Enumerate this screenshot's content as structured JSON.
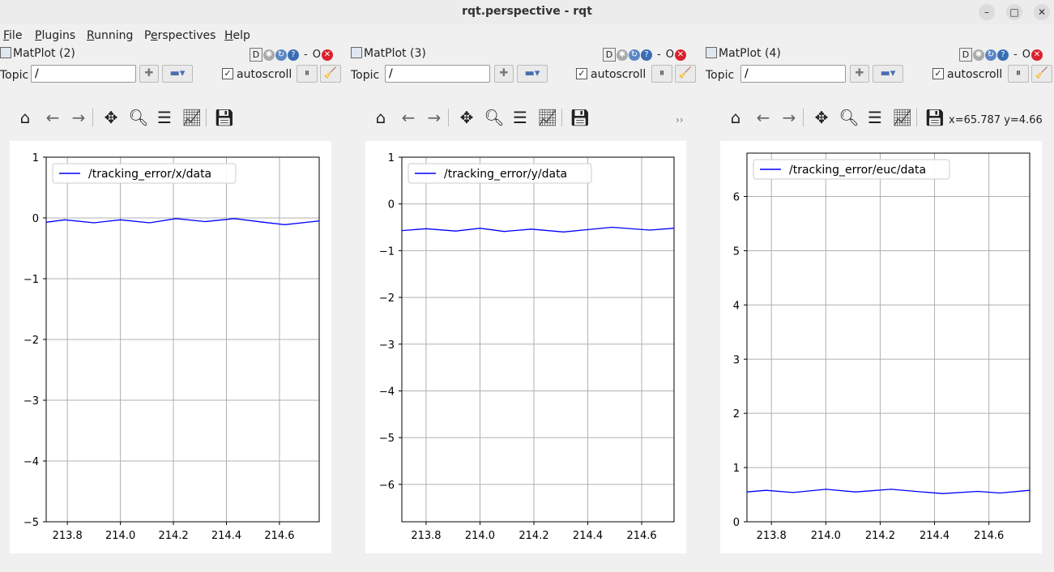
{
  "window": {
    "title": "rqt.perspective - rqt",
    "min_label": "–",
    "max_label": "□",
    "close_label": "✕"
  },
  "menu": [
    {
      "pre": "",
      "u": "F",
      "post": "ile"
    },
    {
      "pre": "",
      "u": "P",
      "post": "lugins"
    },
    {
      "pre": "",
      "u": "R",
      "post": "unning"
    },
    {
      "pre": "P",
      "u": "e",
      "post": "rspectives"
    },
    {
      "pre": "",
      "u": "H",
      "post": "elp"
    }
  ],
  "panels": [
    {
      "title": "MatPlot (2)",
      "dock": {
        "d_label": "D",
        "dash_label": "-",
        "o_label": "O"
      },
      "topic_label": "Topic",
      "topic_value": "/",
      "add_label": "✚",
      "remove_label": "▬▾",
      "autoscroll_label": "autoscroll",
      "autoscroll_checked": "✓",
      "pause_label": "⏸",
      "clear_label": "🧹",
      "chart_data": {
        "type": "line",
        "legend": "/tracking_error/x/data",
        "legend_placement": "upper-left",
        "grid": true,
        "xlim": [
          213.72,
          214.75
        ],
        "ylim": [
          -5,
          1
        ],
        "xticks": [
          213.8,
          214.0,
          214.2,
          214.4,
          214.6
        ],
        "yticks": [
          1,
          0,
          -1,
          -2,
          -3,
          -4,
          -5
        ],
        "xtick_labels": [
          "213.8",
          "214.0",
          "214.2",
          "214.4",
          "214.6"
        ],
        "ytick_labels": [
          "1",
          "0",
          "−1",
          "−2",
          "−3",
          "−4",
          "−5"
        ],
        "color": "#0000ff",
        "x": [
          213.72,
          213.79,
          213.9,
          214.0,
          214.11,
          214.21,
          214.32,
          214.43,
          214.54,
          214.62,
          214.75
        ],
        "y": [
          -0.07,
          -0.03,
          -0.08,
          -0.03,
          -0.08,
          -0.01,
          -0.06,
          -0.01,
          -0.07,
          -0.11,
          -0.05
        ]
      }
    },
    {
      "title": "MatPlot (3)",
      "dock": {
        "d_label": "D",
        "dash_label": "-",
        "o_label": "O"
      },
      "topic_label": "Topic",
      "topic_value": "/",
      "add_label": "✚",
      "remove_label": "▬▾",
      "autoscroll_label": "autoscroll",
      "autoscroll_checked": "✓",
      "pause_label": "⏸",
      "clear_label": "🧹",
      "more_label": "››",
      "chart_data": {
        "type": "line",
        "legend": "/tracking_error/y/data",
        "legend_placement": "upper-left",
        "grid": true,
        "xlim": [
          213.71,
          214.72
        ],
        "ylim": [
          -6.8,
          1
        ],
        "xticks": [
          213.8,
          214.0,
          214.2,
          214.4,
          214.6
        ],
        "yticks": [
          1,
          0,
          -1,
          -2,
          -3,
          -4,
          -5,
          -6
        ],
        "xtick_labels": [
          "213.8",
          "214.0",
          "214.2",
          "214.4",
          "214.6"
        ],
        "ytick_labels": [
          "1",
          "0",
          "−1",
          "−2",
          "−3",
          "−4",
          "−5",
          "−6"
        ],
        "color": "#0000ff",
        "x": [
          213.71,
          213.8,
          213.91,
          214.0,
          214.09,
          214.19,
          214.31,
          214.4,
          214.49,
          214.63,
          214.72
        ],
        "y": [
          -0.57,
          -0.53,
          -0.58,
          -0.52,
          -0.59,
          -0.54,
          -0.6,
          -0.55,
          -0.5,
          -0.56,
          -0.52
        ]
      }
    },
    {
      "title": "MatPlot (4)",
      "dock": {
        "d_label": "D",
        "dash_label": "-",
        "o_label": "O"
      },
      "topic_label": "Topic",
      "topic_value": "/",
      "add_label": "✚",
      "remove_label": "▬▾",
      "autoscroll_label": "autoscroll",
      "autoscroll_checked": "✓",
      "pause_label": "⏸",
      "clear_label": "🧹",
      "coords": "x=65.787 y=4.66",
      "chart_data": {
        "type": "line",
        "legend": "/tracking_error/euc/data",
        "legend_placement": "upper-left",
        "grid": true,
        "xlim": [
          213.71,
          214.75
        ],
        "ylim": [
          0,
          6.8
        ],
        "xticks": [
          213.8,
          214.0,
          214.2,
          214.4,
          214.6
        ],
        "yticks": [
          0,
          1,
          2,
          3,
          4,
          5,
          6
        ],
        "xtick_labels": [
          "213.8",
          "214.0",
          "214.2",
          "214.4",
          "214.6"
        ],
        "ytick_labels": [
          "0",
          "1",
          "2",
          "3",
          "4",
          "5",
          "6"
        ],
        "color": "#0000ff",
        "x": [
          213.71,
          213.78,
          213.88,
          214.0,
          214.11,
          214.24,
          214.33,
          214.43,
          214.56,
          214.64,
          214.75
        ],
        "y": [
          0.55,
          0.58,
          0.54,
          0.6,
          0.55,
          0.6,
          0.56,
          0.52,
          0.56,
          0.53,
          0.58
        ]
      }
    }
  ]
}
